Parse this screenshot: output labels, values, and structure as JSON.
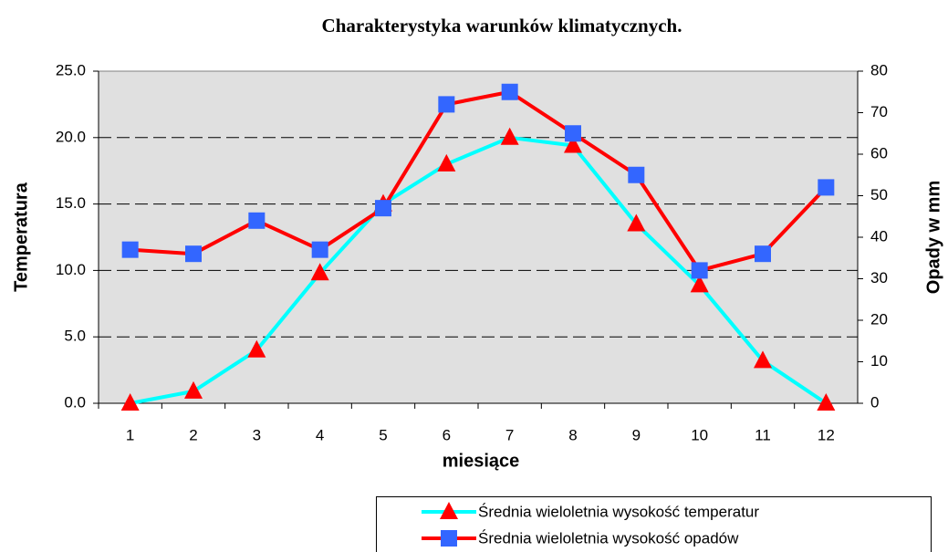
{
  "chart_data": {
    "type": "line",
    "title": "Charakterystyka warunków klimatycznych.",
    "x_label": "miesiące",
    "y_label": "Temperatura",
    "y2_label": "Opady w mm",
    "categories": [
      "1",
      "2",
      "3",
      "4",
      "5",
      "6",
      "7",
      "8",
      "9",
      "10",
      "11",
      "12"
    ],
    "series": [
      {
        "name": "Średnia wieloletnia wysokość temperatur",
        "color": "#00ffff",
        "marker": "triangle",
        "marker_color": "#ff0000",
        "axis": "y",
        "values": [
          0.0,
          0.9,
          4.0,
          9.8,
          15.0,
          18.0,
          20.0,
          19.4,
          13.5,
          8.9,
          3.2,
          0.0
        ]
      },
      {
        "name": "Średnia wieloletnia wysokość opadów",
        "color": "#ff0000",
        "marker": "square",
        "marker_color": "#3366ff",
        "axis": "y2",
        "values": [
          37,
          36,
          44,
          37,
          47,
          72,
          75,
          65,
          55,
          32,
          36,
          52
        ]
      }
    ],
    "ylim": [
      0,
      25
    ],
    "yticks": [
      {
        "value": 0,
        "label": "0.0"
      },
      {
        "value": 5,
        "label": "5.0"
      },
      {
        "value": 10,
        "label": "10.0"
      },
      {
        "value": 15,
        "label": "15.0"
      },
      {
        "value": 20,
        "label": "20.0"
      },
      {
        "value": 25,
        "label": "25.0"
      }
    ],
    "y2lim": [
      0,
      80
    ],
    "y2ticks": [
      0,
      10,
      20,
      30,
      40,
      50,
      60,
      70,
      80
    ],
    "grid": true,
    "legend": "bottom-right"
  }
}
